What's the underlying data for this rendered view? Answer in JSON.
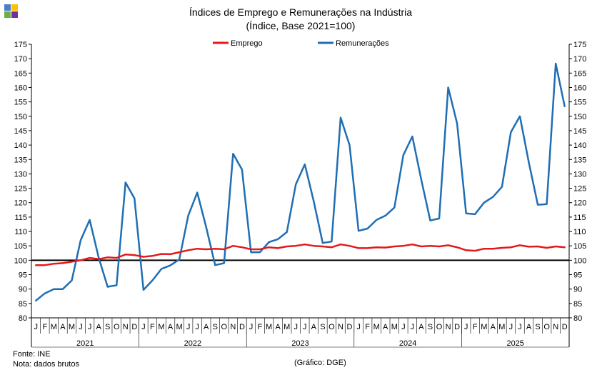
{
  "chart_data": {
    "type": "line",
    "title": "Índices de Emprego e Remunerações na Indústria",
    "subtitle": "(Índice, Base 2021=100)",
    "ylim": [
      80,
      175
    ],
    "yticks": [
      80,
      85,
      90,
      95,
      100,
      105,
      110,
      115,
      120,
      125,
      130,
      135,
      140,
      145,
      150,
      155,
      160,
      165,
      170,
      175
    ],
    "grid": false,
    "legend_position": "top",
    "reference_line": 100,
    "month_labels": [
      "J",
      "F",
      "M",
      "A",
      "M",
      "J",
      "J",
      "A",
      "S",
      "O",
      "N",
      "D"
    ],
    "years": [
      "2021",
      "2022",
      "2023",
      "2024",
      "2025"
    ],
    "series": [
      {
        "name": "Emprego",
        "color": "#e31a1c",
        "values": [
          98.3,
          98.3,
          98.8,
          99.0,
          99.5,
          100.0,
          100.8,
          100.4,
          101.0,
          100.8,
          102.0,
          101.8,
          101.2,
          101.5,
          102.2,
          102.1,
          102.8,
          103.5,
          104.0,
          103.8,
          104.0,
          103.8,
          105.0,
          104.5,
          103.8,
          103.8,
          104.5,
          104.2,
          104.8,
          105.0,
          105.5,
          105.0,
          104.8,
          104.5,
          105.5,
          105.0,
          104.2,
          104.2,
          104.5,
          104.4,
          104.8,
          105.0,
          105.5,
          104.8,
          105.0,
          104.8,
          105.2,
          104.5,
          103.5,
          103.3,
          104.0,
          104.0,
          104.3,
          104.5,
          105.2,
          104.7,
          104.8,
          104.3,
          104.8,
          104.5
        ]
      },
      {
        "name": "Remunerações",
        "color": "#1f6eb4",
        "values": [
          86.0,
          88.5,
          90.0,
          90.0,
          93.0,
          107.0,
          114.0,
          101.0,
          90.8,
          91.3,
          127.0,
          121.5,
          89.7,
          93.0,
          97.0,
          98.2,
          100.3,
          115.5,
          123.5,
          111.5,
          98.3,
          99.0,
          137.0,
          131.5,
          102.8,
          102.8,
          106.3,
          107.3,
          109.8,
          126.3,
          133.3,
          120.5,
          106.0,
          106.5,
          149.5,
          140.0,
          110.2,
          111.0,
          114.0,
          115.5,
          118.3,
          136.5,
          143.0,
          128.0,
          113.8,
          114.5,
          160.0,
          147.5,
          116.3,
          116.0,
          120.0,
          122.0,
          125.5,
          144.5,
          150.0,
          134.0,
          119.3,
          119.5,
          168.3,
          153.5
        ]
      }
    ],
    "source": "Fonte: INE",
    "note": "Nota: dados brutos",
    "credit": "(Gráfico: DGE)"
  },
  "logo_colors": [
    "#4a7fc0",
    "#ffc000",
    "#70ad47",
    "#7030a0"
  ]
}
